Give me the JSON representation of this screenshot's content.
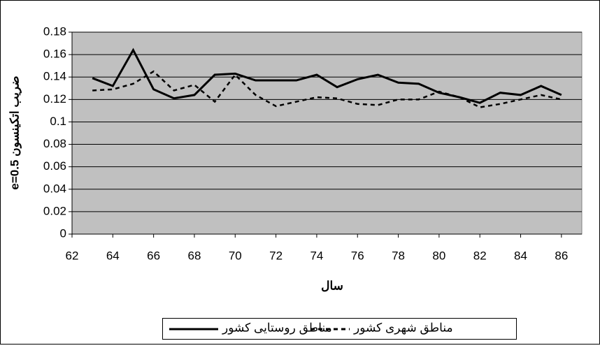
{
  "chart_data": {
    "type": "line",
    "x": [
      63,
      64,
      65,
      66,
      67,
      68,
      69,
      70,
      71,
      72,
      73,
      74,
      75,
      76,
      77,
      78,
      79,
      80,
      81,
      82,
      83,
      84,
      85,
      86
    ],
    "series": [
      {
        "name": "مناطق روستایی کشور",
        "color": "#000000",
        "line_style": "solid",
        "values": [
          0.139,
          0.132,
          0.164,
          0.129,
          0.121,
          0.124,
          0.142,
          0.143,
          0.137,
          0.137,
          0.137,
          0.142,
          0.131,
          0.138,
          0.142,
          0.135,
          0.134,
          0.126,
          0.122,
          0.117,
          0.126,
          0.124,
          0.132,
          0.124
        ]
      },
      {
        "name": "مناطق شهری کشور",
        "color": "#000000",
        "line_style": "dashed",
        "values": [
          0.128,
          0.129,
          0.134,
          0.145,
          0.128,
          0.133,
          0.118,
          0.142,
          0.124,
          0.114,
          0.118,
          0.122,
          0.121,
          0.116,
          0.115,
          0.12,
          0.12,
          0.127,
          0.122,
          0.113,
          0.116,
          0.12,
          0.124,
          0.12
        ]
      }
    ],
    "x_label": "سال",
    "y_label": "ضریب اتکینسون e=0.5",
    "xlim": [
      62,
      87
    ],
    "xticks": [
      62,
      64,
      66,
      68,
      70,
      72,
      74,
      76,
      78,
      80,
      82,
      84,
      86
    ],
    "ylim": [
      0,
      0.18
    ],
    "yticks": [
      0,
      0.02,
      0.04,
      0.06,
      0.08,
      0.1,
      0.12,
      0.14,
      0.16,
      0.18
    ],
    "grid": true,
    "plot_background": "#c0c0c0",
    "legend": "bottom"
  }
}
